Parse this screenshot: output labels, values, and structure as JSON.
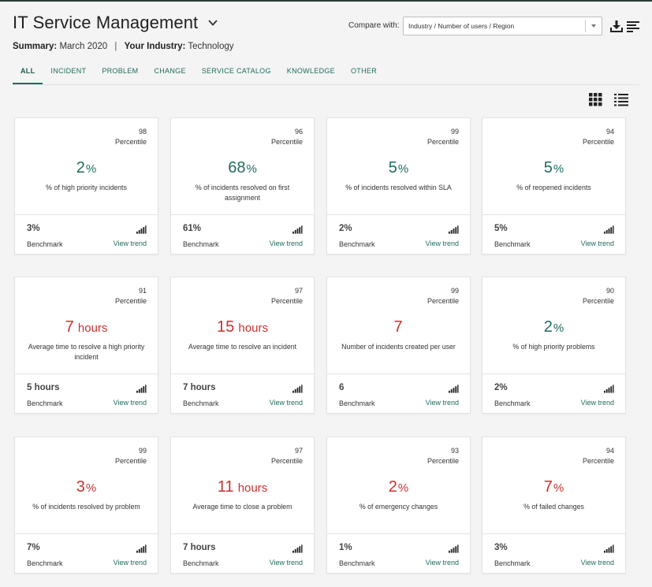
{
  "header": {
    "title": "IT Service Management",
    "summary_label": "Summary:",
    "summary_value": "March 2020",
    "industry_label": "Your Industry:",
    "industry_value": "Technology",
    "compare_label": "Compare with:",
    "compare_selected": "Industry / Number of users / Region",
    "icons": [
      "chevron-down-icon",
      "download-icon",
      "sort-icon"
    ]
  },
  "tabs": [
    {
      "label": "ALL",
      "active": true
    },
    {
      "label": "INCIDENT",
      "active": false
    },
    {
      "label": "PROBLEM",
      "active": false
    },
    {
      "label": "CHANGE",
      "active": false
    },
    {
      "label": "SERVICE CATALOG",
      "active": false
    },
    {
      "label": "KNOWLEDGE",
      "active": false
    },
    {
      "label": "OTHER",
      "active": false
    }
  ],
  "view_icons": [
    "grid-view-icon",
    "list-view-icon"
  ],
  "colors": {
    "good": "#1f6b5e",
    "bad": "#c8322f",
    "accent": "#1f6b5e"
  },
  "cards": [
    {
      "percentile": "98",
      "percentile_label": "Percentile",
      "value": "2",
      "unit": "%",
      "status": "good",
      "desc": "% of high priority incidents",
      "benchmark_value": "3%",
      "benchmark_label": "Benchmark",
      "trend_label": "View trend"
    },
    {
      "percentile": "96",
      "percentile_label": "Percentile",
      "value": "68",
      "unit": "%",
      "status": "good",
      "desc": "% of incidents resolved on first assignment",
      "benchmark_value": "61%",
      "benchmark_label": "Benchmark",
      "trend_label": "View trend"
    },
    {
      "percentile": "99",
      "percentile_label": "Percentile",
      "value": "5",
      "unit": "%",
      "status": "good",
      "desc": "% of incidents resolved within SLA",
      "benchmark_value": "2%",
      "benchmark_label": "Benchmark",
      "trend_label": "View trend"
    },
    {
      "percentile": "94",
      "percentile_label": "Percentile",
      "value": "5",
      "unit": "%",
      "status": "good",
      "desc": "% of reopened incidents",
      "benchmark_value": "5%",
      "benchmark_label": "Benchmark",
      "trend_label": "View trend"
    },
    {
      "percentile": "91",
      "percentile_label": "Percentile",
      "value": "7",
      "unit": " hours",
      "status": "bad",
      "desc": "Average time to resolve a high priority incident",
      "benchmark_value": "5 hours",
      "benchmark_label": "Benchmark",
      "trend_label": "View trend"
    },
    {
      "percentile": "97",
      "percentile_label": "Percentile",
      "value": "15",
      "unit": " hours",
      "status": "bad",
      "desc": "Average time to resolve an incident",
      "benchmark_value": "7 hours",
      "benchmark_label": "Benchmark",
      "trend_label": "View trend"
    },
    {
      "percentile": "99",
      "percentile_label": "Percentile",
      "value": "7",
      "unit": "",
      "status": "bad",
      "desc": "Number of incidents created per user",
      "benchmark_value": "6",
      "benchmark_label": "Benchmark",
      "trend_label": "View trend"
    },
    {
      "percentile": "90",
      "percentile_label": "Percentile",
      "value": "2",
      "unit": "%",
      "status": "good",
      "desc": "% of high priority problems",
      "benchmark_value": "2%",
      "benchmark_label": "Benchmark",
      "trend_label": "View trend"
    },
    {
      "percentile": "99",
      "percentile_label": "Percentile",
      "value": "3",
      "unit": "%",
      "status": "bad",
      "desc": "% of incidents resolved by problem",
      "benchmark_value": "7%",
      "benchmark_label": "Benchmark",
      "trend_label": "View trend"
    },
    {
      "percentile": "97",
      "percentile_label": "Percentile",
      "value": "11",
      "unit": " hours",
      "status": "bad",
      "desc": "Average time to close a problem",
      "benchmark_value": "7 hours",
      "benchmark_label": "Benchmark",
      "trend_label": "View trend"
    },
    {
      "percentile": "93",
      "percentile_label": "Percentile",
      "value": "2",
      "unit": "%",
      "status": "bad",
      "desc": "% of emergency changes",
      "benchmark_value": "1%",
      "benchmark_label": "Benchmark",
      "trend_label": "View trend"
    },
    {
      "percentile": "94",
      "percentile_label": "Percentile",
      "value": "7",
      "unit": "%",
      "status": "bad",
      "desc": "% of failed changes",
      "benchmark_value": "3%",
      "benchmark_label": "Benchmark",
      "trend_label": "View trend"
    }
  ]
}
